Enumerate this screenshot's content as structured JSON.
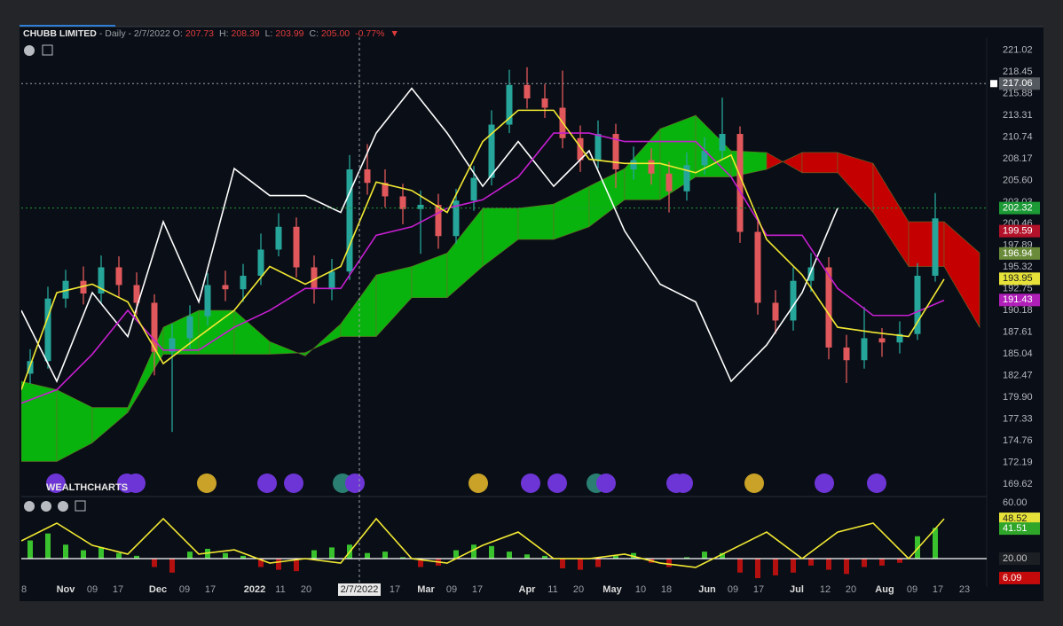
{
  "chart_data": [
    {
      "type": "candlestick",
      "title": "CHUBB LIMITED",
      "subtitle": "- Daily - 2/7/2022",
      "ohlc": [
        {
          "label": "O:",
          "value": "207.73"
        },
        {
          "label": "H:",
          "value": "208.39"
        },
        {
          "label": "L:",
          "value": "203.99"
        },
        {
          "label": "C:",
          "value": "205.00"
        }
      ],
      "change": "-0.77%",
      "change_arrow": "▼",
      "watermark": "WEALTHCHARTS",
      "up_color": "#26a69a",
      "down_color": "#e0585b",
      "x": [
        2,
        6,
        10,
        14,
        18,
        22,
        26,
        30,
        34,
        38,
        42,
        46,
        50,
        54,
        58,
        62,
        66,
        70,
        74,
        78,
        82,
        86,
        90,
        94,
        98,
        102,
        106,
        110,
        114,
        118,
        122,
        126,
        130,
        134,
        138,
        142,
        146,
        150,
        154,
        158,
        162,
        166,
        170,
        174,
        178,
        182,
        186,
        190,
        194,
        198,
        202,
        206
      ],
      "open": [
        182.7,
        184.2,
        191.6,
        193.7,
        192.2,
        195.3,
        193.2,
        191.1,
        185.3,
        186.9,
        189.5,
        193.2,
        192.7,
        194.3,
        197.4,
        200.1,
        195.3,
        192.7,
        194.8,
        206.9,
        205.3,
        203.7,
        202.2,
        202.7,
        199.0,
        203.2,
        205.9,
        212.2,
        216.9,
        215.3,
        214.2,
        210.6,
        208.0,
        211.1,
        206.9,
        208.0,
        206.4,
        204.3,
        207.4,
        209.1,
        211.1,
        199.5,
        191.1,
        189.0,
        193.7,
        195.3,
        185.8,
        184.3,
        186.9,
        186.4,
        187.4,
        194.3
      ],
      "high": [
        185.6,
        193.0,
        195.0,
        195.4,
        196.7,
        196.6,
        194.7,
        192.1,
        188.6,
        190.8,
        194.6,
        194.9,
        195.7,
        199.3,
        201.7,
        201.2,
        196.7,
        196.3,
        208.6,
        209.9,
        206.9,
        205.2,
        204.4,
        204.0,
        204.6,
        207.3,
        213.9,
        218.7,
        219.0,
        217.0,
        218.6,
        212.1,
        212.7,
        212.3,
        209.6,
        209.4,
        207.8,
        208.9,
        210.7,
        215.4,
        212.0,
        200.8,
        192.6,
        195.3,
        197.0,
        196.5,
        187.3,
        190.6,
        188.1,
        188.9,
        195.8,
        204.1
      ],
      "low": [
        181.5,
        183.3,
        190.5,
        190.9,
        191.0,
        191.7,
        189.7,
        182.5,
        175.8,
        185.7,
        188.4,
        191.3,
        191.2,
        193.2,
        196.6,
        194.1,
        191.0,
        191.4,
        193.8,
        203.9,
        202.4,
        200.4,
        196.9,
        197.5,
        198.1,
        202.0,
        205.0,
        211.2,
        214.1,
        213.0,
        209.4,
        206.6,
        207.0,
        204.7,
        205.7,
        205.1,
        201.8,
        203.2,
        206.3,
        208.1,
        198.2,
        189.7,
        187.4,
        187.8,
        192.4,
        184.4,
        181.6,
        183.3,
        184.7,
        185.1,
        186.7,
        193.6
      ],
      "close": [
        184.2,
        191.6,
        193.7,
        192.2,
        195.3,
        193.2,
        191.1,
        185.3,
        186.9,
        189.5,
        193.2,
        192.7,
        194.3,
        197.4,
        200.1,
        195.3,
        192.7,
        194.8,
        206.9,
        205.3,
        203.7,
        202.2,
        202.7,
        199.0,
        203.2,
        205.9,
        212.2,
        216.9,
        215.3,
        214.2,
        210.6,
        208.0,
        211.1,
        206.9,
        208.0,
        206.4,
        204.3,
        207.4,
        209.1,
        211.1,
        199.5,
        191.1,
        189.0,
        193.7,
        195.3,
        185.8,
        184.3,
        186.9,
        186.4,
        187.4,
        194.3,
        201.1
      ],
      "cloud": {
        "x": [
          0,
          8,
          16,
          24,
          32,
          40,
          48,
          56,
          64,
          72,
          80,
          88,
          96,
          104,
          112,
          120,
          128,
          136,
          144,
          152,
          160,
          168,
          176,
          184,
          192,
          200,
          208,
          216
        ],
        "span_a": [
          181.8,
          180.8,
          178.7,
          178.7,
          188.2,
          190.2,
          190.2,
          186.5,
          184.8,
          188.6,
          194.4,
          195.4,
          197.0,
          202.3,
          202.3,
          202.8,
          204.9,
          207.0,
          211.7,
          213.3,
          209.1,
          208.9,
          206.5,
          206.5,
          201.8,
          195.4,
          195.4,
          188.2
        ],
        "span_b": [
          172.3,
          172.3,
          174.5,
          178.1,
          185.0,
          185.0,
          185.0,
          185.0,
          185.2,
          187.1,
          187.1,
          191.7,
          191.7,
          195.4,
          198.6,
          198.6,
          200.1,
          203.3,
          203.3,
          206.0,
          206.0,
          206.9,
          208.9,
          208.9,
          207.6,
          200.7,
          200.7,
          197.0
        ],
        "up_color": "#09b30d",
        "down_color": "#c40000"
      },
      "overlay_x": [
        0,
        8,
        16,
        24,
        32,
        40,
        48,
        56,
        64,
        72,
        80,
        88,
        96,
        104,
        112,
        120,
        128,
        136,
        144,
        152,
        160,
        168,
        176,
        184,
        192,
        200,
        208
      ],
      "overlays": [
        {
          "color": "#ffffff",
          "values": [
            190.2,
            181.8,
            192.3,
            187.1,
            200.7,
            191.2,
            207.0,
            203.8,
            203.8,
            201.8,
            211.2,
            216.5,
            211.2,
            204.9,
            210.2,
            204.9,
            209.1,
            199.6,
            193.3,
            191.2,
            181.8,
            186.1,
            192.3,
            202.3,
            null,
            null,
            null
          ]
        },
        {
          "color": "#c51fd0",
          "values": [
            179.2,
            180.8,
            185.0,
            190.2,
            185.5,
            185.5,
            188.2,
            190.2,
            192.8,
            192.8,
            199.1,
            200.1,
            202.3,
            203.3,
            206.0,
            211.2,
            211.2,
            210.2,
            210.2,
            210.2,
            206.0,
            199.1,
            199.1,
            192.8,
            189.6,
            189.6,
            191.4
          ]
        },
        {
          "color": "#f2e933",
          "values": [
            180.8,
            192.3,
            193.3,
            191.2,
            183.9,
            187.1,
            190.2,
            195.4,
            193.3,
            195.4,
            205.4,
            204.4,
            201.8,
            210.2,
            213.9,
            213.9,
            208.1,
            207.6,
            207.6,
            206.5,
            208.6,
            198.6,
            194.4,
            188.2,
            187.6,
            187.1,
            193.9
          ]
        }
      ],
      "xlim": [
        0,
        217.6
      ],
      "xticks": [
        {
          "value": 0.6,
          "label": "8"
        },
        {
          "value": 10,
          "label": "Nov"
        },
        {
          "value": 16,
          "label": "09"
        },
        {
          "value": 21.8,
          "label": "17"
        },
        {
          "value": 30.8,
          "label": "Dec"
        },
        {
          "value": 36.8,
          "label": "09"
        },
        {
          "value": 42.6,
          "label": "17"
        },
        {
          "value": 52.6,
          "label": "2022"
        },
        {
          "value": 58.4,
          "label": "11"
        },
        {
          "value": 64.2,
          "label": "20"
        },
        {
          "value": 84.2,
          "label": "17"
        },
        {
          "value": 91.2,
          "label": "Mar"
        },
        {
          "value": 97,
          "label": "09"
        },
        {
          "value": 102.8,
          "label": "17"
        },
        {
          "value": 114,
          "label": "Apr"
        },
        {
          "value": 119.8,
          "label": "11"
        },
        {
          "value": 125.6,
          "label": "20"
        },
        {
          "value": 133.2,
          "label": "May"
        },
        {
          "value": 139.6,
          "label": "10"
        },
        {
          "value": 145.4,
          "label": "18"
        },
        {
          "value": 154.6,
          "label": "Jun"
        },
        {
          "value": 160.4,
          "label": "09"
        },
        {
          "value": 166.2,
          "label": "17"
        },
        {
          "value": 174.8,
          "label": "Jul"
        },
        {
          "value": 181.2,
          "label": "12"
        },
        {
          "value": 187,
          "label": "20"
        },
        {
          "value": 194.6,
          "label": "Aug"
        },
        {
          "value": 200.8,
          "label": "09"
        },
        {
          "value": 206.6,
          "label": "17"
        },
        {
          "value": 212.6,
          "label": "23"
        }
      ],
      "ylim": [
        168.36,
        222.55
      ],
      "yticks": [
        221.02,
        218.45,
        215.88,
        213.31,
        210.74,
        208.17,
        {
          "value": 205.6,
          "label": "205.60"
        },
        203.03,
        200.46,
        197.89,
        195.32,
        192.75,
        190.18,
        187.61,
        185.04,
        182.47,
        {
          "value": 179.9,
          "label": "179.90"
        },
        177.33,
        174.76,
        172.19,
        169.62
      ],
      "crosshair": {
        "x": 76.2,
        "x_label": "2/7/2022",
        "y": 217.06,
        "color": "#555a60"
      },
      "markers": [
        {
          "value": 202.32,
          "color": "#1c9a36",
          "text_color": "#ffffff",
          "line": true
        },
        {
          "value": 199.59,
          "color": "#b3122a",
          "text_color": "#ffffff",
          "line": false
        },
        {
          "value": 196.94,
          "color": "#6a8c3a",
          "text_color": "#ffffff",
          "line": false
        },
        {
          "value": 193.95,
          "color": "#e6e23a",
          "text_color": "#1a1a1a",
          "line": false
        },
        {
          "value": 191.43,
          "color": "#b01fb8",
          "text_color": "#ffffff",
          "line": false
        }
      ]
    },
    {
      "type": "oscillator",
      "xlim": [
        0,
        217.6
      ],
      "x": [
        2,
        6,
        10,
        14,
        18,
        22,
        26,
        30,
        34,
        38,
        42,
        46,
        50,
        54,
        58,
        62,
        66,
        70,
        74,
        78,
        82,
        86,
        90,
        94,
        98,
        102,
        106,
        110,
        114,
        118,
        122,
        126,
        130,
        134,
        138,
        142,
        146,
        150,
        154,
        158,
        162,
        166,
        170,
        174,
        178,
        182,
        186,
        190,
        194,
        198,
        202,
        206
      ],
      "hist": [
        33,
        38,
        30,
        26,
        28,
        24,
        22,
        14,
        10,
        25,
        27,
        24,
        22,
        14,
        12,
        11,
        26,
        28,
        30,
        24,
        25,
        21,
        14,
        15,
        26,
        30,
        29,
        25,
        23,
        22,
        13,
        12,
        14,
        22,
        24,
        17,
        14,
        21,
        25,
        24,
        10,
        6,
        8,
        10,
        15,
        12,
        9,
        14,
        15,
        17,
        36,
        42
      ],
      "hist_base": 20,
      "up_color": "#39c12e",
      "down_color": "#b51010",
      "base_color": "#ffffff",
      "line_x": [
        0,
        8,
        16,
        24,
        32,
        40,
        48,
        56,
        64,
        72,
        80,
        88,
        96,
        104,
        112,
        120,
        128,
        136,
        144,
        152,
        160,
        168,
        176,
        184,
        192,
        200,
        208
      ],
      "line": {
        "color": "#f2e933",
        "values": [
          32.7,
          45.4,
          29.5,
          23.2,
          48.6,
          23.2,
          26.3,
          16.8,
          20.0,
          16.8,
          48.6,
          20.0,
          16.8,
          29.5,
          39.0,
          20.0,
          20.0,
          23.2,
          16.8,
          13.7,
          26.3,
          39.0,
          20.0,
          39.0,
          45.4,
          20.0,
          48.5
        ]
      },
      "ylim": [
        0,
        63.17
      ],
      "yticks": [
        {
          "value": 60,
          "label": "60.00"
        }
      ],
      "markers": [
        {
          "value": 48.52,
          "color": "#e6e23a",
          "text_color": "#1a1a1a"
        },
        {
          "value": 41.51,
          "color": "#2fa52a",
          "text_color": "#ffffff"
        },
        {
          "value": 20,
          "label": "20.00",
          "color": "#1c1f24",
          "text_color": "#c8c8c8"
        },
        {
          "value": 6.09,
          "color": "#c40a0a",
          "text_color": "#ffffff"
        }
      ]
    }
  ]
}
